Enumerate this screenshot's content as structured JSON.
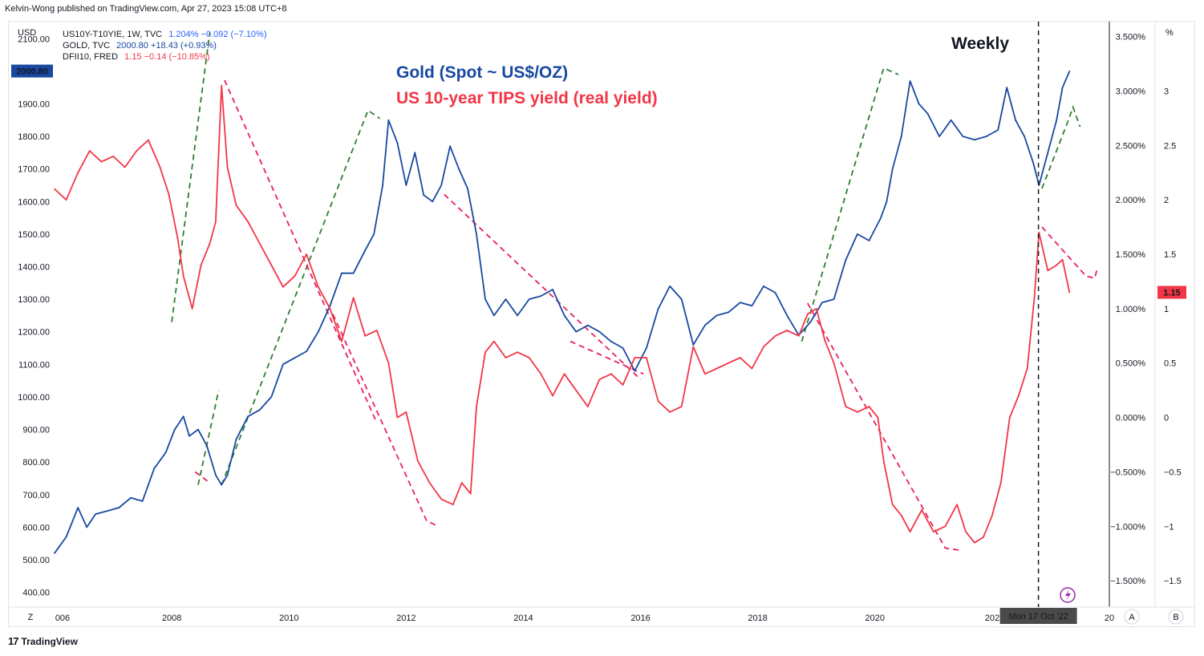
{
  "publisher": "Kelvin-Wong published on TradingView.com, Apr 27, 2023 15:08 UTC+8",
  "legend": [
    {
      "symbol": "US10Y-T10YIE, 1W, TVC",
      "values": "1.204%  −0.092 (−7.10%)",
      "color": "#2962ff"
    },
    {
      "symbol": "GOLD, TVC",
      "values": "2000.80  +18.43 (+0.93%)",
      "color": "#1848a0"
    },
    {
      "symbol": "DFII10, FRED",
      "values": "1.15  −0.14 (−10.85%)",
      "color": "#f23645"
    }
  ],
  "footer": {
    "logo": "17",
    "brand": "TradingView"
  },
  "scale_buttons": {
    "left": "Z",
    "right_a": "A",
    "right_b": "B"
  },
  "chart_data": {
    "type": "line",
    "title_lines": [
      "Gold (Spot ~ US$/OZ)",
      "US 10-year TIPS yield (real yield)"
    ],
    "annotation": "Weekly",
    "crosshair_label": "Mon 17 Oct '22",
    "left_axis": {
      "unit": "USD",
      "ticks": [
        "2100.00",
        "1900.00",
        "1800.00",
        "1700.00",
        "1600.00",
        "1500.00",
        "1400.00",
        "1300.00",
        "1200.00",
        "1100.00",
        "1000.00",
        "900.00",
        "800.00",
        "700.00",
        "600.00",
        "500.00",
        "400.00"
      ],
      "range": [
        362,
        2150
      ],
      "current": "2000.80"
    },
    "right_axis_pct": {
      "ticks": [
        "3.500%",
        "3.000%",
        "2.500%",
        "2.000%",
        "1.500%",
        "1.000%",
        "0.500%",
        "0.000%",
        "−0.500%",
        "−1.000%",
        "−1.500%"
      ],
      "range": [
        -1.72,
        3.63
      ]
    },
    "right_axis_num": {
      "unit": "%",
      "ticks": [
        "3",
        "2.5",
        "2",
        "1.5",
        "1",
        "0.5",
        "0",
        "−0.5",
        "−1",
        "−1.5"
      ],
      "current": "1.15"
    },
    "x_ticks": [
      "006",
      "2008",
      "2010",
      "2012",
      "2014",
      "2016",
      "2018",
      "2020",
      "202",
      "20"
    ],
    "x_range": [
      2006.0,
      2024.0
    ],
    "series": [
      {
        "name": "GOLD",
        "color": "#1848a0",
        "axis": "left",
        "x": [
          2006.0,
          2006.2,
          2006.4,
          2006.55,
          2006.7,
          2006.9,
          2007.1,
          2007.3,
          2007.5,
          2007.7,
          2007.9,
          2008.05,
          2008.2,
          2008.3,
          2008.45,
          2008.6,
          2008.75,
          2008.85,
          2008.95,
          2009.1,
          2009.3,
          2009.5,
          2009.7,
          2009.9,
          2010.1,
          2010.3,
          2010.5,
          2010.7,
          2010.9,
          2011.1,
          2011.3,
          2011.45,
          2011.6,
          2011.7,
          2011.85,
          2012.0,
          2012.15,
          2012.3,
          2012.45,
          2012.6,
          2012.75,
          2012.9,
          2013.05,
          2013.2,
          2013.35,
          2013.5,
          2013.7,
          2013.9,
          2014.1,
          2014.3,
          2014.5,
          2014.7,
          2014.9,
          2015.1,
          2015.3,
          2015.5,
          2015.7,
          2015.9,
          2016.1,
          2016.3,
          2016.5,
          2016.7,
          2016.9,
          2017.1,
          2017.3,
          2017.5,
          2017.7,
          2017.9,
          2018.1,
          2018.3,
          2018.5,
          2018.7,
          2018.9,
          2019.1,
          2019.3,
          2019.5,
          2019.7,
          2019.9,
          2020.1,
          2020.2,
          2020.3,
          2020.45,
          2020.6,
          2020.75,
          2020.9,
          2021.1,
          2021.3,
          2021.5,
          2021.7,
          2021.9,
          2022.1,
          2022.25,
          2022.4,
          2022.55,
          2022.7,
          2022.8,
          2022.95,
          2023.1,
          2023.2,
          2023.32
        ],
        "y": [
          520,
          570,
          660,
          600,
          640,
          650,
          660,
          690,
          680,
          780,
          830,
          900,
          940,
          880,
          900,
          850,
          760,
          730,
          760,
          870,
          940,
          960,
          1000,
          1100,
          1120,
          1140,
          1200,
          1280,
          1380,
          1380,
          1450,
          1500,
          1650,
          1850,
          1780,
          1650,
          1750,
          1620,
          1600,
          1650,
          1770,
          1700,
          1640,
          1500,
          1300,
          1250,
          1300,
          1250,
          1300,
          1310,
          1330,
          1250,
          1200,
          1220,
          1200,
          1170,
          1150,
          1080,
          1150,
          1270,
          1340,
          1300,
          1160,
          1220,
          1250,
          1260,
          1290,
          1280,
          1340,
          1320,
          1250,
          1190,
          1230,
          1290,
          1300,
          1420,
          1500,
          1480,
          1550,
          1600,
          1700,
          1800,
          1970,
          1900,
          1870,
          1800,
          1850,
          1800,
          1790,
          1800,
          1820,
          1950,
          1850,
          1800,
          1720,
          1650,
          1750,
          1850,
          1950,
          2000
        ]
      },
      {
        "name": "DFII10",
        "color": "#f23645",
        "axis": "right",
        "x": [
          2006.0,
          2006.2,
          2006.4,
          2006.6,
          2006.8,
          2007.0,
          2007.2,
          2007.4,
          2007.6,
          2007.8,
          2007.95,
          2008.1,
          2008.2,
          2008.35,
          2008.5,
          2008.65,
          2008.75,
          2008.85,
          2008.95,
          2009.1,
          2009.3,
          2009.5,
          2009.7,
          2009.9,
          2010.1,
          2010.3,
          2010.5,
          2010.7,
          2010.9,
          2011.1,
          2011.3,
          2011.5,
          2011.7,
          2011.85,
          2012.0,
          2012.2,
          2012.4,
          2012.6,
          2012.8,
          2012.95,
          2013.1,
          2013.2,
          2013.35,
          2013.5,
          2013.7,
          2013.9,
          2014.1,
          2014.3,
          2014.5,
          2014.7,
          2014.9,
          2015.1,
          2015.3,
          2015.5,
          2015.7,
          2015.9,
          2016.1,
          2016.3,
          2016.5,
          2016.7,
          2016.9,
          2017.1,
          2017.3,
          2017.5,
          2017.7,
          2017.9,
          2018.1,
          2018.3,
          2018.5,
          2018.7,
          2018.85,
          2019.0,
          2019.15,
          2019.3,
          2019.5,
          2019.7,
          2019.9,
          2020.05,
          2020.15,
          2020.3,
          2020.45,
          2020.6,
          2020.8,
          2021.0,
          2021.2,
          2021.4,
          2021.55,
          2021.7,
          2021.85,
          2022.0,
          2022.15,
          2022.3,
          2022.45,
          2022.6,
          2022.72,
          2022.8,
          2022.95,
          2023.1,
          2023.2,
          2023.32
        ],
        "y": [
          2.1,
          2.0,
          2.25,
          2.45,
          2.35,
          2.4,
          2.3,
          2.45,
          2.55,
          2.3,
          2.05,
          1.65,
          1.3,
          1.0,
          1.4,
          1.6,
          1.8,
          3.05,
          2.3,
          1.95,
          1.8,
          1.6,
          1.4,
          1.2,
          1.3,
          1.5,
          1.2,
          1.0,
          0.7,
          1.1,
          0.75,
          0.8,
          0.5,
          0.0,
          0.05,
          -0.4,
          -0.6,
          -0.75,
          -0.8,
          -0.6,
          -0.7,
          0.1,
          0.6,
          0.7,
          0.55,
          0.6,
          0.55,
          0.4,
          0.2,
          0.4,
          0.25,
          0.1,
          0.35,
          0.4,
          0.3,
          0.55,
          0.55,
          0.15,
          0.05,
          0.1,
          0.65,
          0.4,
          0.45,
          0.5,
          0.55,
          0.45,
          0.65,
          0.75,
          0.8,
          0.75,
          0.95,
          1.0,
          0.7,
          0.5,
          0.1,
          0.05,
          0.1,
          0.0,
          -0.4,
          -0.8,
          -0.9,
          -1.05,
          -0.85,
          -1.05,
          -1.0,
          -0.8,
          -1.05,
          -1.15,
          -1.1,
          -0.9,
          -0.6,
          0.0,
          0.2,
          0.45,
          1.1,
          1.7,
          1.35,
          1.4,
          1.45,
          1.15
        ]
      }
    ],
    "trendlines": [
      {
        "color": "#2e7d32",
        "points": [
          [
            2008.0,
            1230
          ],
          [
            2008.65,
            2120
          ]
        ]
      },
      {
        "color": "#2e7d32",
        "points": [
          [
            2008.85,
            730
          ],
          [
            2011.35,
            1880
          ],
          [
            2011.55,
            1855
          ]
        ]
      },
      {
        "color": "#2e7d32",
        "points": [
          [
            2018.75,
            1170
          ],
          [
            2020.15,
            2010
          ],
          [
            2020.4,
            1990
          ]
        ]
      },
      {
        "color": "#2e7d32",
        "points": [
          [
            2022.85,
            1640
          ],
          [
            2023.3,
            1850
          ],
          [
            2023.38,
            1890
          ],
          [
            2023.5,
            1830
          ]
        ]
      },
      {
        "color": "#2e7d32",
        "points": [
          [
            2008.45,
            730
          ],
          [
            2008.8,
            1020
          ]
        ]
      },
      {
        "color": "#e91e63",
        "points": [
          [
            2008.9,
            3.1
          ],
          [
            2011.5,
            -0.05
          ]
        ]
      },
      {
        "color": "#e91e63",
        "points": [
          [
            2010.75,
            0.95
          ],
          [
            2012.35,
            -0.95
          ],
          [
            2012.55,
            -1.0
          ]
        ]
      },
      {
        "color": "#e91e63",
        "points": [
          [
            2012.65,
            2.05
          ],
          [
            2016.0,
            0.35
          ]
        ]
      },
      {
        "color": "#e91e63",
        "points": [
          [
            2018.85,
            1.05
          ],
          [
            2021.2,
            -1.2
          ],
          [
            2021.45,
            -1.22
          ]
        ]
      },
      {
        "color": "#e91e63",
        "points": [
          [
            2022.85,
            1.75
          ],
          [
            2023.6,
            1.3
          ],
          [
            2023.75,
            1.28
          ],
          [
            2023.8,
            1.38
          ]
        ]
      },
      {
        "color": "#e91e63",
        "points": [
          [
            2008.4,
            -0.5
          ],
          [
            2008.65,
            -0.6
          ]
        ]
      },
      {
        "color": "#e91e63",
        "points": [
          [
            2014.8,
            0.7
          ],
          [
            2016.05,
            0.4
          ]
        ]
      }
    ],
    "crosshair_x": 2022.79
  }
}
